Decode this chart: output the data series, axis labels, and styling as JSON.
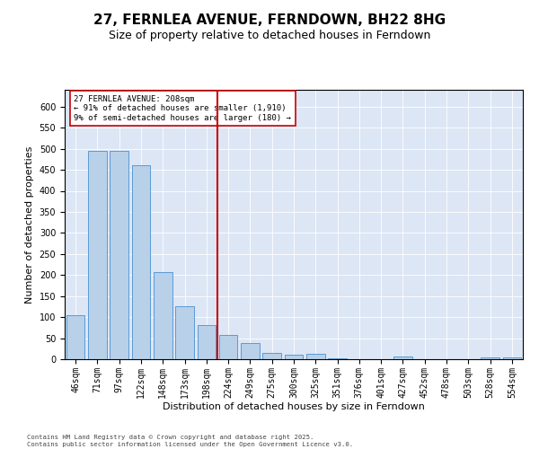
{
  "title": "27, FERNLEA AVENUE, FERNDOWN, BH22 8HG",
  "subtitle": "Size of property relative to detached houses in Ferndown",
  "xlabel": "Distribution of detached houses by size in Ferndown",
  "ylabel": "Number of detached properties",
  "categories": [
    "46sqm",
    "71sqm",
    "97sqm",
    "122sqm",
    "148sqm",
    "173sqm",
    "198sqm",
    "224sqm",
    "249sqm",
    "275sqm",
    "300sqm",
    "325sqm",
    "351sqm",
    "376sqm",
    "401sqm",
    "427sqm",
    "452sqm",
    "478sqm",
    "503sqm",
    "528sqm",
    "554sqm"
  ],
  "values": [
    105,
    494,
    494,
    460,
    207,
    125,
    82,
    58,
    39,
    15,
    10,
    12,
    3,
    1,
    0,
    6,
    0,
    0,
    0,
    5,
    5
  ],
  "bar_color": "#b8d0e8",
  "bar_edge_color": "#5b9bd5",
  "vline_color": "#cc0000",
  "annotation_text": "27 FERNLEA AVENUE: 208sqm\n← 91% of detached houses are smaller (1,910)\n9% of semi-detached houses are larger (180) →",
  "annotation_box_color": "#ffffff",
  "annotation_box_edge": "#cc0000",
  "ylim_max": 640,
  "yticks": [
    0,
    50,
    100,
    150,
    200,
    250,
    300,
    350,
    400,
    450,
    500,
    550,
    600
  ],
  "background_color": "#dce6f5",
  "footer": "Contains HM Land Registry data © Crown copyright and database right 2025.\nContains public sector information licensed under the Open Government Licence v3.0.",
  "title_fontsize": 11,
  "subtitle_fontsize": 9,
  "axis_label_fontsize": 8,
  "tick_fontsize": 7
}
